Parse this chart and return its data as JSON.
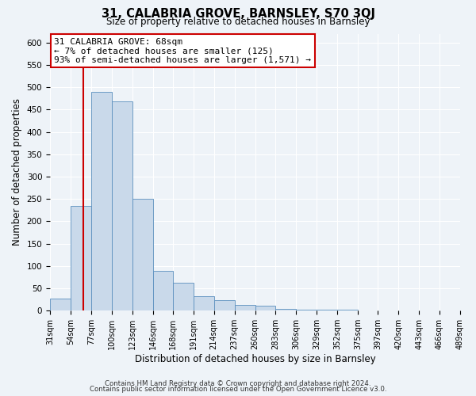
{
  "title": "31, CALABRIA GROVE, BARNSLEY, S70 3QJ",
  "subtitle": "Size of property relative to detached houses in Barnsley",
  "xlabel": "Distribution of detached houses by size in Barnsley",
  "ylabel": "Number of detached properties",
  "bin_edges": [
    31,
    54,
    77,
    100,
    123,
    146,
    168,
    191,
    214,
    237,
    260,
    283,
    306,
    329,
    352,
    375,
    397,
    420,
    443,
    466,
    489
  ],
  "bin_labels": [
    "31sqm",
    "54sqm",
    "77sqm",
    "100sqm",
    "123sqm",
    "146sqm",
    "168sqm",
    "191sqm",
    "214sqm",
    "237sqm",
    "260sqm",
    "283sqm",
    "306sqm",
    "329sqm",
    "352sqm",
    "375sqm",
    "397sqm",
    "420sqm",
    "443sqm",
    "466sqm",
    "489sqm"
  ],
  "counts": [
    27,
    235,
    490,
    468,
    250,
    90,
    63,
    33,
    24,
    13,
    11,
    4,
    2,
    3,
    2,
    1,
    0,
    1,
    0,
    1
  ],
  "bar_fill": "#c9d9ea",
  "bar_edge": "#5b8fbe",
  "property_line_x": 68,
  "property_line_color": "#cc0000",
  "annotation_title": "31 CALABRIA GROVE: 68sqm",
  "annotation_line1": "← 7% of detached houses are smaller (125)",
  "annotation_line2": "93% of semi-detached houses are larger (1,571) →",
  "annotation_box_facecolor": "#ffffff",
  "annotation_box_edgecolor": "#cc0000",
  "ylim": [
    0,
    620
  ],
  "yticks": [
    0,
    50,
    100,
    150,
    200,
    250,
    300,
    350,
    400,
    450,
    500,
    550,
    600
  ],
  "footer1": "Contains HM Land Registry data © Crown copyright and database right 2024.",
  "footer2": "Contains public sector information licensed under the Open Government Licence v3.0.",
  "background_color": "#eef3f8",
  "grid_color": "#ffffff"
}
